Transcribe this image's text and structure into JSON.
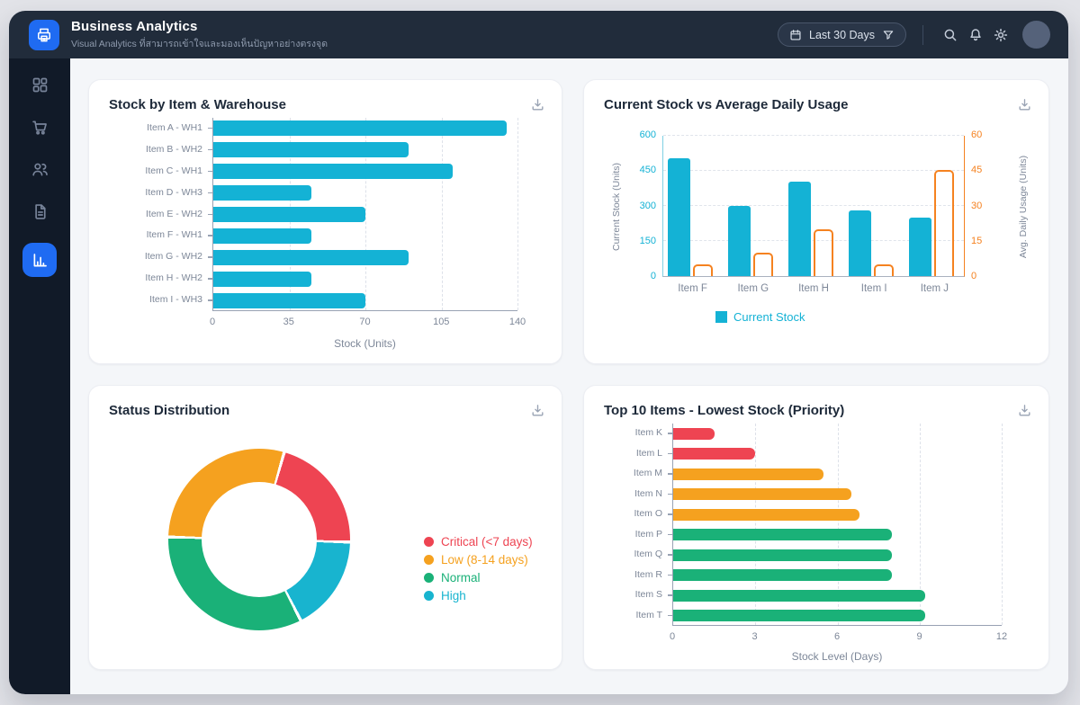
{
  "header": {
    "title": "Business Analytics",
    "subtitle": "Visual Analytics ที่สามารถเข้าใจและมองเห็นปัญหาอย่างตรงจุด",
    "date_range_label": "Last 30 Days",
    "action_icons": [
      "calendar-icon",
      "filter-funnel-icon",
      "search-icon",
      "bell-icon",
      "gear-icon",
      "avatar"
    ]
  },
  "sidebar": {
    "items": [
      {
        "icon": "dashboard-grid-icon",
        "active": false
      },
      {
        "icon": "shopping-cart-icon",
        "active": false
      },
      {
        "icon": "users-icon",
        "active": false
      },
      {
        "icon": "document-icon",
        "active": false
      },
      {
        "icon": "bar-chart-icon",
        "active": true
      }
    ]
  },
  "cards": [
    {
      "title": "Stock by Item & Warehouse",
      "action_icon": "download-icon"
    },
    {
      "title": "Current Stock vs Average Daily Usage",
      "action_icon": "download-icon"
    },
    {
      "title": "Status Distribution",
      "action_icon": "download-icon"
    },
    {
      "title": "Top 10 Items - Lowest Stock (Priority)",
      "action_icon": "download-icon"
    }
  ],
  "colors": {
    "accent_blue": "#1f6bf2",
    "cyan": "#14b2d5",
    "orange": "#f58220",
    "amber": "#f5a11f",
    "red": "#ee4452",
    "green": "#1ab178",
    "header_bg": "#212c3b",
    "sidebar_bg": "#111a28",
    "content_bg": "#f4f6f9",
    "axis_text": "#7d8798"
  },
  "chart_data": [
    {
      "type": "bar",
      "orientation": "horizontal",
      "title": "Stock by Item & Warehouse",
      "categories": [
        "Item A - WH1",
        "Item B - WH2",
        "Item C - WH1",
        "Item D - WH3",
        "Item E - WH2",
        "Item F - WH1",
        "Item G - WH2",
        "Item H - WH2",
        "Item I - WH3"
      ],
      "values": [
        135,
        90,
        110,
        45,
        70,
        45,
        90,
        45,
        70
      ],
      "bar_color": "#14b2d5",
      "xlabel": "Stock (Units)",
      "xlim": [
        0,
        140
      ],
      "xticks": [
        0,
        35,
        70,
        105,
        140
      ],
      "grid": true
    },
    {
      "type": "bar",
      "title": "Current Stock vs Average Daily Usage",
      "categories": [
        "Item F",
        "Item G",
        "Item H",
        "Item I",
        "Item J"
      ],
      "series": [
        {
          "name": "Current Stock",
          "axis": "left",
          "style": "filled",
          "color": "#14b2d5",
          "values": [
            500,
            300,
            400,
            280,
            250
          ]
        },
        {
          "name": "Avg. Daily Usage",
          "axis": "right",
          "style": "outlined",
          "color": "#f58220",
          "values": [
            5,
            10,
            20,
            5,
            45
          ]
        }
      ],
      "left_axis": {
        "label": "Current Stock (Units)",
        "lim": [
          0,
          600
        ],
        "ticks": [
          0,
          150,
          300,
          450,
          600
        ],
        "color": "#14b2d5"
      },
      "right_axis": {
        "label": "Avg. Daily Usage (Units)",
        "lim": [
          0,
          60
        ],
        "ticks": [
          0,
          15,
          30,
          45,
          60
        ],
        "color": "#f58220"
      },
      "legend": [
        "Current Stock"
      ],
      "legend_position": "bottom",
      "grid": true
    },
    {
      "type": "pie",
      "donut": true,
      "title": "Status Distribution",
      "start_angle_deg": 15,
      "slices": [
        {
          "label": "Critical (<7 days)",
          "value": 21,
          "color": "#ee4452"
        },
        {
          "label": "Low (8-14 days)",
          "value": 29,
          "color": "#f5a11f"
        },
        {
          "label": "Normal",
          "value": 33,
          "color": "#1ab178"
        },
        {
          "label": "High",
          "value": 17,
          "color": "#18b4cf"
        }
      ],
      "clockwise_order_from_top": [
        "Critical (<7 days)",
        "High",
        "Normal",
        "Low (8-14 days)"
      ],
      "legend_position": "right"
    },
    {
      "type": "bar",
      "orientation": "horizontal",
      "title": "Top 10 Items - Lowest Stock (Priority)",
      "categories": [
        "Item K",
        "Item L",
        "Item M",
        "Item N",
        "Item O",
        "Item P",
        "Item Q",
        "Item R",
        "Item S",
        "Item T"
      ],
      "values": [
        1.5,
        3,
        5.5,
        6.5,
        6.8,
        8,
        8,
        8,
        9.2,
        9.2
      ],
      "colors": [
        "#ee4452",
        "#ee4452",
        "#f5a11f",
        "#f5a11f",
        "#f5a11f",
        "#1ab178",
        "#1ab178",
        "#1ab178",
        "#1ab178",
        "#1ab178"
      ],
      "xlabel": "Stock Level (Days)",
      "xlim": [
        0,
        12
      ],
      "xticks": [
        0,
        3,
        6,
        9,
        12
      ],
      "grid": true
    }
  ]
}
